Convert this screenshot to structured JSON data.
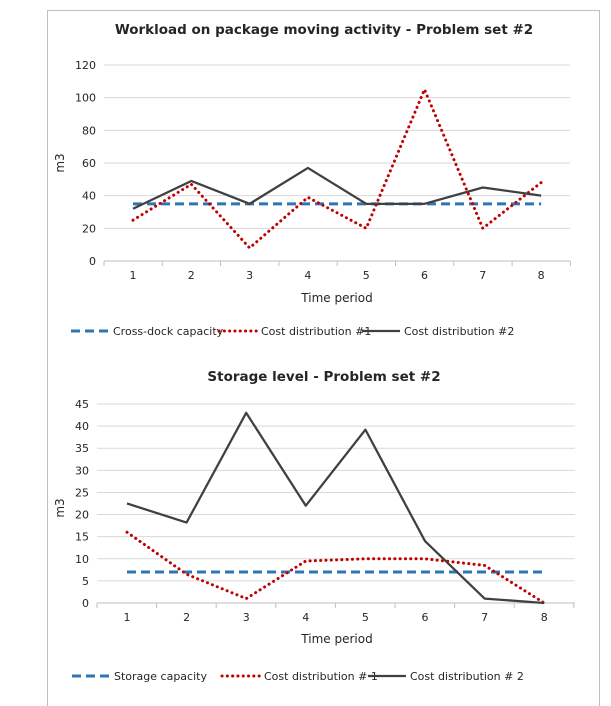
{
  "colors": {
    "capacity": "#2e75b6",
    "cost1": "#c00000",
    "cost2": "#404040",
    "grid": "#d9d9d9"
  },
  "chart_data": [
    {
      "type": "line",
      "title": "Workload on package moving activity - Problem set #2",
      "xlabel": "Time period",
      "ylabel": "m3",
      "categories": [
        "1",
        "2",
        "3",
        "4",
        "5",
        "6",
        "7",
        "8"
      ],
      "ylim": [
        0,
        120
      ],
      "yticks": [
        0,
        20,
        40,
        60,
        80,
        100,
        120
      ],
      "grid": true,
      "legend_position": "bottom",
      "series": [
        {
          "name": "Cross-dock capacity",
          "style": "dashed",
          "values": [
            35,
            35,
            35,
            35,
            35,
            35,
            35,
            35
          ]
        },
        {
          "name": "Cost distribution #1",
          "style": "dotted",
          "values": [
            25,
            47,
            8,
            39,
            20,
            105,
            20,
            48
          ]
        },
        {
          "name": "Cost distribution #2",
          "style": "solid",
          "values": [
            32,
            49,
            35,
            57,
            35,
            35,
            45,
            40
          ]
        }
      ]
    },
    {
      "type": "line",
      "title": "Storage level - Problem set #2",
      "xlabel": "Time period",
      "ylabel": "m3",
      "categories": [
        "1",
        "2",
        "3",
        "4",
        "5",
        "6",
        "7",
        "8"
      ],
      "ylim": [
        0,
        45
      ],
      "yticks": [
        0,
        5,
        10,
        15,
        20,
        25,
        30,
        35,
        40,
        45
      ],
      "grid": true,
      "legend_position": "bottom",
      "series": [
        {
          "name": "Storage capacity",
          "style": "dashed",
          "values": [
            7,
            7,
            7,
            7,
            7,
            7,
            7,
            7
          ]
        },
        {
          "name": "Cost distribution # 1",
          "style": "dotted",
          "values": [
            16,
            6.5,
            1,
            9.5,
            10,
            10,
            8.5,
            0
          ]
        },
        {
          "name": "Cost distribution # 2",
          "style": "solid",
          "values": [
            22.5,
            18.2,
            43,
            22,
            39.2,
            14,
            1,
            0
          ]
        }
      ]
    }
  ]
}
